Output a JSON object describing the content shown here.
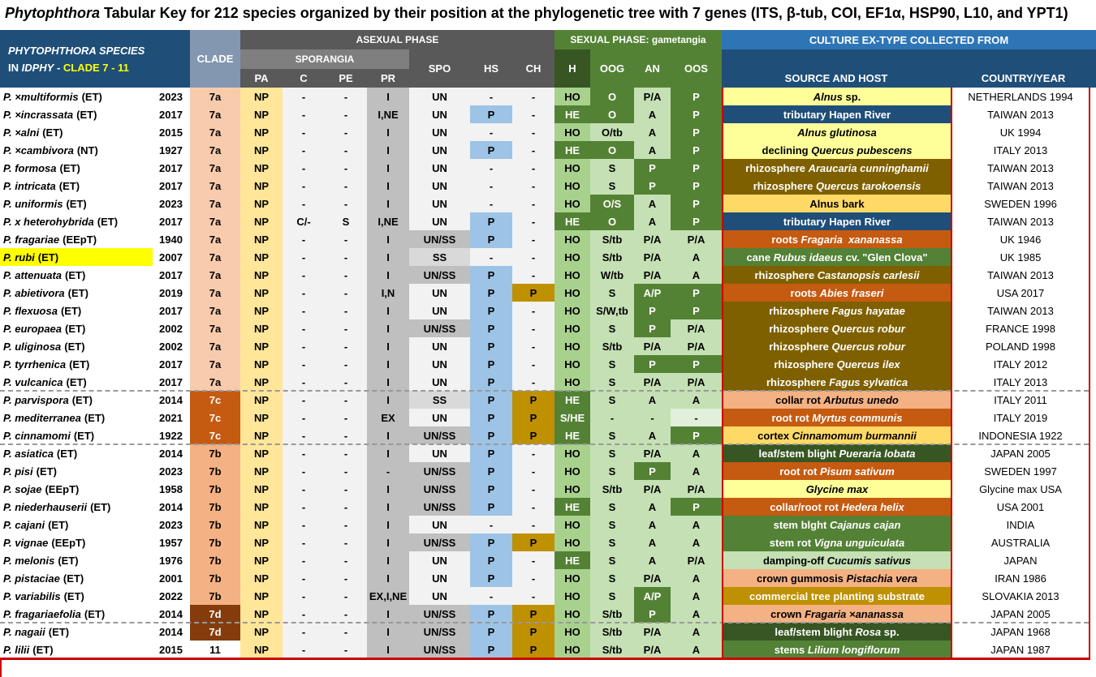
{
  "title": {
    "genus": "Phytophthora",
    "rest": " Tabular Key for 212 species organized by their position at the phylogenetic tree with 7 genes (ITS, β-tub, COI, EF1α, HSP90, L10, and YPT1)"
  },
  "headers": {
    "species_line1": "PHYTOPHTHORA  SPECIES",
    "species_line2_prefix": "IN ",
    "species_line2_db": "IDPHY",
    "species_line2_sep": " -  ",
    "species_line2_clade": "CLADE 7 - 11",
    "clade": "CLADE",
    "asexual": "ASEXUAL PHASE",
    "sporangia": "SPORANGIA",
    "pa": "PA",
    "c": "C",
    "pe": "PE",
    "pr": "PR",
    "spo": "SPO",
    "hs": "HS",
    "ch": "CH",
    "sexual": "SEXUAL PHASE: gametangia",
    "h": "H",
    "oog": "OOG",
    "an": "AN",
    "oos": "OOS",
    "culture": "CULTURE EX-TYPE COLLECTED FROM",
    "source": "SOURCE AND HOST",
    "country": "COUNTRY/YEAR"
  },
  "colors": {
    "header_blue": "#1f4e79",
    "header_clade": "#8497b0",
    "asexual_dark": "#595959",
    "asexual_mid": "#7f7f7f",
    "sexual_green": "#548235",
    "culture_blue": "#2e75b6",
    "clade_yellow": "#ffff00",
    "border_red": "#c00000"
  },
  "rows": [
    {
      "name": "P. ×multiformis",
      "tag": "(ET)",
      "year": "2023",
      "clade": "7a",
      "pa": "NP",
      "c": "-",
      "pe": "-",
      "pr": "I",
      "spo": "UN",
      "hs": "-",
      "ch": "-",
      "h": "HO",
      "oog": "O",
      "an": "P/A",
      "oos": "P",
      "src_pre": "",
      "src_it": "Alnus",
      "src_post": " sp.",
      "src_bg": "#ffff99",
      "country": "NETHERLANDS 1994"
    },
    {
      "name": "P. ×incrassata",
      "tag": "(ET)",
      "year": "2017",
      "clade": "7a",
      "pa": "NP",
      "c": "-",
      "pe": "-",
      "pr": "I,NE",
      "spo": "UN",
      "hs": "P",
      "ch": "-",
      "h": "HE",
      "oog": "O",
      "an": "A",
      "oos": "P",
      "src_pre": "tributary Hapen River",
      "src_it": "",
      "src_post": "",
      "src_bg": "#1f4e79",
      "country": "TAIWAN 2013"
    },
    {
      "name": "P. ×alni",
      "tag": "(ET)",
      "year": "2015",
      "clade": "7a",
      "pa": "NP",
      "c": "-",
      "pe": "-",
      "pr": "I",
      "spo": "UN",
      "hs": "-",
      "ch": "-",
      "h": "HO",
      "oog": "O/tb",
      "an": "A",
      "oos": "P",
      "src_pre": "",
      "src_it": "Alnus glutinosa",
      "src_post": "",
      "src_bg": "#ffff99",
      "country": "UK 1994"
    },
    {
      "name": "P. ×cambivora",
      "tag": "(NT)",
      "year": "1927",
      "clade": "7a",
      "pa": "NP",
      "c": "-",
      "pe": "-",
      "pr": "I",
      "spo": "UN",
      "hs": "P",
      "ch": "-",
      "h": "HE",
      "oog": "O",
      "an": "A",
      "oos": "P",
      "src_pre": "declining ",
      "src_it": "Quercus pubescens",
      "src_post": "",
      "src_bg": "#ffff99",
      "country": "ITALY 2013"
    },
    {
      "name": "P. formosa",
      "tag": "(ET)",
      "year": "2017",
      "clade": "7a",
      "pa": "NP",
      "c": "-",
      "pe": "-",
      "pr": "I",
      "spo": "UN",
      "hs": "-",
      "ch": "-",
      "h": "HO",
      "oog": "S",
      "an": "P",
      "oos": "P",
      "src_pre": "rhizosphere ",
      "src_it": "Araucaria cunninghamii",
      "src_post": "",
      "src_bg": "#7f6000",
      "country": "TAIWAN 2013"
    },
    {
      "name": "P. intricata",
      "tag": "(ET)",
      "year": "2017",
      "clade": "7a",
      "pa": "NP",
      "c": "-",
      "pe": "-",
      "pr": "I",
      "spo": "UN",
      "hs": "-",
      "ch": "-",
      "h": "HO",
      "oog": "S",
      "an": "P",
      "oos": "P",
      "src_pre": "rhizosphere ",
      "src_it": "Quercus tarokoensis",
      "src_post": "",
      "src_bg": "#7f6000",
      "country": "TAIWAN 2013"
    },
    {
      "name": "P. uniformis",
      "tag": "(ET)",
      "year": "2023",
      "clade": "7a",
      "pa": "NP",
      "c": "-",
      "pe": "-",
      "pr": "I",
      "spo": "UN",
      "hs": "-",
      "ch": "-",
      "h": "HO",
      "oog": "O/S",
      "an": "A",
      "oos": "P",
      "src_pre": "Alnus bark",
      "src_it": "",
      "src_post": "",
      "src_bg": "#ffd966",
      "country": "SWEDEN 1996"
    },
    {
      "name": "P. x heterohybrida",
      "tag": "(ET)",
      "year": "2017",
      "clade": "7a",
      "pa": "NP",
      "c": "C/-",
      "pe": "S",
      "pr": "I,NE",
      "spo": "UN",
      "hs": "P",
      "ch": "-",
      "h": "HE",
      "oog": "O",
      "an": "A",
      "oos": "P",
      "src_pre": "tributary Hapen River",
      "src_it": "",
      "src_post": "",
      "src_bg": "#1f4e79",
      "country": "TAIWAN 2013"
    },
    {
      "name": "P. fragariae",
      "tag": "(EEpT)",
      "year": "1940",
      "clade": "7a",
      "pa": "NP",
      "c": "-",
      "pe": "-",
      "pr": "I",
      "spo": "UN/SS",
      "hs": "P",
      "ch": "-",
      "h": "HO",
      "oog": "S/tb",
      "an": "P/A",
      "oos": "P/A",
      "src_pre": "roots ",
      "src_it": "Fragaria  xananassa",
      "src_post": "",
      "src_bg": "#c55a11",
      "country": "UK 1946"
    },
    {
      "name": "P. rubi",
      "tag": "(ET)",
      "year": "2007",
      "clade": "7a",
      "pa": "NP",
      "c": "-",
      "pe": "-",
      "pr": "I",
      "spo": "SS",
      "hs": "-",
      "ch": "-",
      "h": "HO",
      "oog": "S/tb",
      "an": "P/A",
      "oos": "A",
      "src_pre": "cane ",
      "src_it": "Rubus idaeus",
      "src_post": " cv. \"Glen Clova\"",
      "src_bg": "#538135",
      "country": "UK 1985",
      "hl": true
    },
    {
      "name": "P. attenuata",
      "tag": "(ET)",
      "year": "2017",
      "clade": "7a",
      "pa": "NP",
      "c": "-",
      "pe": "-",
      "pr": "I",
      "spo": "UN/SS",
      "hs": "P",
      "ch": "-",
      "h": "HO",
      "oog": "W/tb",
      "an": "P/A",
      "oos": "A",
      "src_pre": "rhizosphere ",
      "src_it": "Castanopsis carlesii",
      "src_post": "",
      "src_bg": "#7f6000",
      "country": "TAIWAN 2013"
    },
    {
      "name": "P. abietivora",
      "tag": "(ET)",
      "year": "2019",
      "clade": "7a",
      "pa": "NP",
      "c": "-",
      "pe": "-",
      "pr": "I,N",
      "spo": "UN",
      "hs": "P",
      "ch": "P",
      "h": "HO",
      "oog": "S",
      "an": "A/P",
      "oos": "P",
      "src_pre": "roots ",
      "src_it": "Abies fraseri",
      "src_post": "",
      "src_bg": "#c55a11",
      "country": "USA 2017"
    },
    {
      "name": "P. flexuosa",
      "tag": "(ET)",
      "year": "2017",
      "clade": "7a",
      "pa": "NP",
      "c": "-",
      "pe": "-",
      "pr": "I",
      "spo": "UN",
      "hs": "P",
      "ch": "-",
      "h": "HO",
      "oog": "S/W,tb",
      "an": "P",
      "oos": "P",
      "src_pre": "rhizosphere ",
      "src_it": "Fagus hayatae",
      "src_post": "",
      "src_bg": "#7f6000",
      "country": "TAIWAN 2013"
    },
    {
      "name": "P. europaea",
      "tag": "(ET)",
      "year": "2002",
      "clade": "7a",
      "pa": "NP",
      "c": "-",
      "pe": "-",
      "pr": "I",
      "spo": "UN/SS",
      "hs": "P",
      "ch": "-",
      "h": "HO",
      "oog": "S",
      "an": "P",
      "oos": "P/A",
      "src_pre": "rhizosphere ",
      "src_it": "Quercus robur",
      "src_post": "",
      "src_bg": "#7f6000",
      "country": "FRANCE 1998"
    },
    {
      "name": "P. uliginosa",
      "tag": "(ET)",
      "year": "2002",
      "clade": "7a",
      "pa": "NP",
      "c": "-",
      "pe": "-",
      "pr": "I",
      "spo": "UN",
      "hs": "P",
      "ch": "-",
      "h": "HO",
      "oog": "S/tb",
      "an": "P/A",
      "oos": "P/A",
      "src_pre": "rhizosphere ",
      "src_it": "Quercus robur",
      "src_post": "",
      "src_bg": "#7f6000",
      "country": "POLAND 1998"
    },
    {
      "name": "P. tyrrhenica",
      "tag": "(ET)",
      "year": "2017",
      "clade": "7a",
      "pa": "NP",
      "c": "-",
      "pe": "-",
      "pr": "I",
      "spo": "UN",
      "hs": "P",
      "ch": "-",
      "h": "HO",
      "oog": "S",
      "an": "P",
      "oos": "P",
      "src_pre": "rhizosphere ",
      "src_it": "Quercus ilex",
      "src_post": "",
      "src_bg": "#7f6000",
      "country": "ITALY 2012"
    },
    {
      "name": "P. vulcanica",
      "tag": "(ET)",
      "year": "2017",
      "clade": "7a",
      "pa": "NP",
      "c": "-",
      "pe": "-",
      "pr": "I",
      "spo": "UN",
      "hs": "P",
      "ch": "-",
      "h": "HO",
      "oog": "S",
      "an": "P/A",
      "oos": "P/A",
      "src_pre": "rhizosphere ",
      "src_it": "Fagus sylvatica",
      "src_post": "",
      "src_bg": "#7f6000",
      "country": "ITALY 2013"
    },
    {
      "name": "P. parvispora",
      "tag": "(ET)",
      "year": "2014",
      "clade": "7c",
      "pa": "NP",
      "c": "-",
      "pe": "-",
      "pr": "I",
      "spo": "SS",
      "hs": "P",
      "ch": "P",
      "h": "HE",
      "oog": "S",
      "an": "A",
      "oos": "A",
      "src_pre": "collar rot ",
      "src_it": "Arbutus unedo",
      "src_post": "",
      "src_bg": "#f4b183",
      "country": "ITALY 2011"
    },
    {
      "name": "P. mediterranea",
      "tag": "(ET)",
      "year": "2021",
      "clade": "7c",
      "pa": "NP",
      "c": "-",
      "pe": "-",
      "pr": "EX",
      "spo": "UN",
      "hs": "P",
      "ch": "P",
      "h": "S/HE",
      "oog": "-",
      "an": "-",
      "oos": "-",
      "src_pre": "root rot ",
      "src_it": "Myrtus communis",
      "src_post": "",
      "src_bg": "#c55a11",
      "country": "ITALY 2019"
    },
    {
      "name": "P. cinnamomi",
      "tag": "(ET)",
      "year": "1922",
      "clade": "7c",
      "pa": "NP",
      "c": "-",
      "pe": "-",
      "pr": "I",
      "spo": "UN/SS",
      "hs": "P",
      "ch": "P",
      "h": "HE",
      "oog": "S",
      "an": "A",
      "oos": "P",
      "src_pre": "cortex ",
      "src_it": "Cinnamomum burmannii",
      "src_post": "",
      "src_bg": "#ffd966",
      "country": "INDONESIA 1922"
    },
    {
      "name": "P. asiatica",
      "tag": "(ET)",
      "year": "2014",
      "clade": "7b",
      "pa": "NP",
      "c": "-",
      "pe": "-",
      "pr": "I",
      "spo": "UN",
      "hs": "P",
      "ch": "-",
      "h": "HO",
      "oog": "S",
      "an": "P/A",
      "oos": "A",
      "src_pre": "leaf/stem blight ",
      "src_it": "Pueraria lobata",
      "src_post": "",
      "src_bg": "#375623",
      "country": "JAPAN 2005"
    },
    {
      "name": "P. pisi",
      "tag": "(ET)",
      "year": "2023",
      "clade": "7b",
      "pa": "NP",
      "c": "-",
      "pe": "-",
      "pr": "-",
      "spo": "UN/SS",
      "hs": "P",
      "ch": "-",
      "h": "HO",
      "oog": "S",
      "an": "P",
      "oos": "A",
      "src_pre": "root rot ",
      "src_it": "Pisum sativum",
      "src_post": "",
      "src_bg": "#c55a11",
      "country": "SWEDEN 1997"
    },
    {
      "name": "P. sojae",
      "tag": "(EEpT)",
      "year": "1958",
      "clade": "7b",
      "pa": "NP",
      "c": "-",
      "pe": "-",
      "pr": "I",
      "spo": "UN/SS",
      "hs": "P",
      "ch": "-",
      "h": "HO",
      "oog": "S/tb",
      "an": "P/A",
      "oos": "P/A",
      "src_pre": "",
      "src_it": "Glycine max",
      "src_post": "",
      "src_bg": "#ffff99",
      "country": "Glycine max USA"
    },
    {
      "name": "P. niederhauserii",
      "tag": "(ET)",
      "year": "2014",
      "clade": "7b",
      "pa": "NP",
      "c": "-",
      "pe": "-",
      "pr": "I",
      "spo": "UN/SS",
      "hs": "P",
      "ch": "-",
      "h": "HE",
      "oog": "S",
      "an": "A",
      "oos": "P",
      "src_pre": "collar/root rot ",
      "src_it": "Hedera helix",
      "src_post": "",
      "src_bg": "#c55a11",
      "country": "USA 2001"
    },
    {
      "name": "P. cajani",
      "tag": "(ET)",
      "year": "2023",
      "clade": "7b",
      "pa": "NP",
      "c": "-",
      "pe": "-",
      "pr": "I",
      "spo": "UN",
      "hs": "-",
      "ch": "-",
      "h": "HO",
      "oog": "S",
      "an": "A",
      "oos": "A",
      "src_pre": "stem blght ",
      "src_it": "Cajanus cajan",
      "src_post": "",
      "src_bg": "#538135",
      "country": "INDIA"
    },
    {
      "name": "P. vignae",
      "tag": "(EEpT)",
      "year": "1957",
      "clade": "7b",
      "pa": "NP",
      "c": "-",
      "pe": "-",
      "pr": "I",
      "spo": "UN/SS",
      "hs": "P",
      "ch": "P",
      "h": "HO",
      "oog": "S",
      "an": "A",
      "oos": "A",
      "src_pre": "stem rot ",
      "src_it": "Vigna unguiculata",
      "src_post": "",
      "src_bg": "#538135",
      "country": "AUSTRALIA"
    },
    {
      "name": "P. melonis",
      "tag": "(ET)",
      "year": "1976",
      "clade": "7b",
      "pa": "NP",
      "c": "-",
      "pe": "-",
      "pr": "I",
      "spo": "UN",
      "hs": "P",
      "ch": "-",
      "h": "HE",
      "oog": "S",
      "an": "A",
      "oos": "P/A",
      "src_pre": "damping-off ",
      "src_it": "Cucumis sativus",
      "src_post": "",
      "src_bg": "#c5e0b4",
      "country": "JAPAN"
    },
    {
      "name": "P. pistaciae",
      "tag": "(ET)",
      "year": "2001",
      "clade": "7b",
      "pa": "NP",
      "c": "-",
      "pe": "-",
      "pr": "I",
      "spo": "UN",
      "hs": "P",
      "ch": "-",
      "h": "HO",
      "oog": "S",
      "an": "P/A",
      "oos": "A",
      "src_pre": "crown gummosis ",
      "src_it": "Pistachia vera",
      "src_post": "",
      "src_bg": "#f4b183",
      "country": "IRAN 1986"
    },
    {
      "name": "P. variabilis",
      "tag": "(ET)",
      "year": "2022",
      "clade": "7b",
      "pa": "NP",
      "c": "-",
      "pe": "-",
      "pr": "EX,I,NE",
      "spo": "UN",
      "hs": "-",
      "ch": "-",
      "h": "HO",
      "oog": "S",
      "an": "A/P",
      "oos": "A",
      "src_pre": "commercial tree planting substrate",
      "src_it": "",
      "src_post": "",
      "src_bg": "#bf9000",
      "country": "SLOVAKIA 2013"
    },
    {
      "name": "P. fragariaefolia",
      "tag": "(ET)",
      "year": "2014",
      "clade": "7d",
      "pa": "NP",
      "c": "-",
      "pe": "-",
      "pr": "I",
      "spo": "UN/SS",
      "hs": "P",
      "ch": "P",
      "h": "HO",
      "oog": "S/tb",
      "an": "P",
      "oos": "A",
      "src_pre": "crown ",
      "src_it": "Fragaria ×ananassa",
      "src_post": "",
      "src_bg": "#f4b183",
      "country": "JAPAN 2005"
    },
    {
      "name": "P. nagaii",
      "tag": "(ET)",
      "year": "2014",
      "clade": "7d",
      "pa": "NP",
      "c": "-",
      "pe": "-",
      "pr": "I",
      "spo": "UN/SS",
      "hs": "P",
      "ch": "P",
      "h": "HO",
      "oog": "S/tb",
      "an": "P/A",
      "oos": "A",
      "src_pre": "leaf/stem blight ",
      "src_it": "Rosa",
      "src_post": " sp.",
      "src_bg": "#375623",
      "country": "JAPAN 1968"
    },
    {
      "name": "P. lilii",
      "tag": "(ET)",
      "year": "2015",
      "clade": "11",
      "pa": "NP",
      "c": "-",
      "pe": "-",
      "pr": "I",
      "spo": "UN/SS",
      "hs": "P",
      "ch": "P",
      "h": "HO",
      "oog": "S/tb",
      "an": "P/A",
      "oos": "A",
      "src_pre": "stems ",
      "src_it": "Lilium longiflorum",
      "src_post": "",
      "src_bg": "#538135",
      "country": "JAPAN 1987"
    }
  ]
}
